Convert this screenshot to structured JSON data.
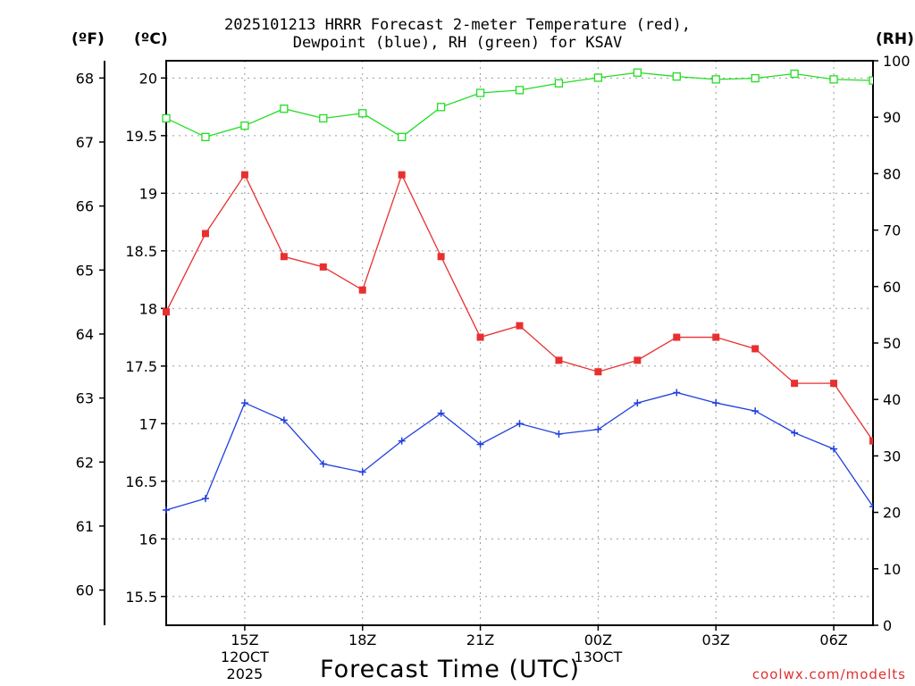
{
  "header": {
    "title_line1": "2025101213 HRRR Forecast 2-meter Temperature (red),",
    "title_line2": "Dewpoint (blue), RH (green) for KSAV"
  },
  "units": {
    "fahrenheit": "(ºF)",
    "celsius": "(ºC)",
    "rh": "(RH)"
  },
  "footer": {
    "xlabel": "Forecast Time (UTC)",
    "credit": "coolwx.com/modelts"
  },
  "colors": {
    "temperature": "#e83030",
    "dewpoint": "#1f3fe0",
    "rh": "#22dd22",
    "grid": "#9a9a9a"
  },
  "chart_data": {
    "type": "line",
    "title": "2025101213 HRRR Forecast 2-meter Temperature (red), Dewpoint (blue), RH (green) for KSAV",
    "xlabel": "Forecast Time (UTC)",
    "x_ticks": [
      {
        "hour": 15,
        "lines": [
          "15Z",
          "12OCT",
          "2025"
        ]
      },
      {
        "hour": 18,
        "lines": [
          "18Z"
        ]
      },
      {
        "hour": 21,
        "lines": [
          "21Z"
        ]
      },
      {
        "hour": 24,
        "lines": [
          "00Z",
          "13OCT"
        ]
      },
      {
        "hour": 27,
        "lines": [
          "03Z"
        ]
      },
      {
        "hour": 30,
        "lines": [
          "06Z"
        ]
      }
    ],
    "xlim": [
      13,
      31
    ],
    "x": [
      13,
      14,
      15,
      16,
      17,
      18,
      19,
      20,
      21,
      22,
      23,
      24,
      25,
      26,
      27,
      28,
      29,
      30,
      31
    ],
    "ylim_c": [
      15.25,
      20.15
    ],
    "ylim_f": [
      59.45,
      68.27
    ],
    "ylim_rh": [
      0,
      100
    ],
    "yticks_c": [
      15.5,
      16,
      16.5,
      17,
      17.5,
      18,
      18.5,
      19,
      19.5,
      20
    ],
    "yticks_f": [
      60,
      61,
      62,
      63,
      64,
      65,
      66,
      67,
      68
    ],
    "yticks_rh": [
      0,
      10,
      20,
      30,
      40,
      50,
      60,
      70,
      80,
      90,
      100
    ],
    "grid": true,
    "series": [
      {
        "name": "Temperature",
        "axis": "celsius",
        "marker": "square-filled",
        "values": [
          17.97,
          18.65,
          19.16,
          18.45,
          18.36,
          18.16,
          19.16,
          18.45,
          17.75,
          17.85,
          17.55,
          17.45,
          17.55,
          17.75,
          17.75,
          17.65,
          17.35,
          17.35,
          16.85
        ]
      },
      {
        "name": "Dewpoint",
        "axis": "celsius",
        "marker": "plus",
        "values": [
          16.25,
          16.35,
          17.18,
          17.03,
          16.65,
          16.58,
          16.85,
          17.09,
          16.82,
          17.0,
          16.91,
          16.95,
          17.18,
          17.27,
          17.18,
          17.11,
          16.92,
          16.78,
          16.28
        ]
      },
      {
        "name": "RH",
        "axis": "rh",
        "marker": "square-open",
        "values": [
          89.8,
          86.5,
          88.5,
          91.5,
          89.8,
          90.7,
          86.5,
          91.8,
          94.3,
          94.8,
          96.0,
          97.0,
          97.9,
          97.2,
          96.7,
          96.9,
          97.7,
          96.7,
          96.5
        ]
      }
    ]
  }
}
